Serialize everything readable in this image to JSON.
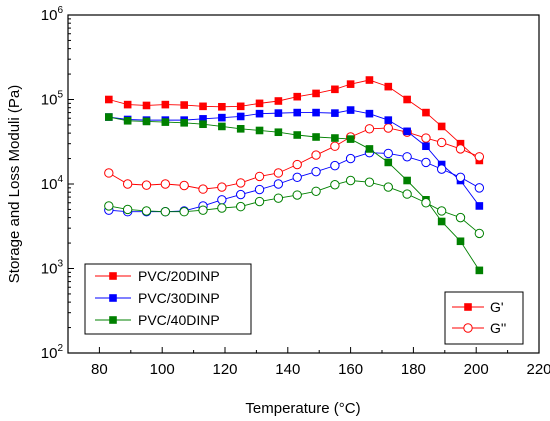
{
  "chart_data": {
    "type": "line",
    "xlabel": "Temperature (°C)",
    "ylabel": "Storage and Loss Moduli (Pa)",
    "xlim": [
      70,
      220
    ],
    "ylim": [
      100,
      1000000
    ],
    "yscale": "log",
    "x_ticks": [
      "80",
      "100",
      "120",
      "140",
      "160",
      "180",
      "200",
      "220"
    ],
    "x_tick_values": [
      80,
      100,
      120,
      140,
      160,
      180,
      200,
      220
    ],
    "y_ticks": [
      {
        "value": 100,
        "base": "10",
        "exp": "2"
      },
      {
        "value": 1000,
        "base": "10",
        "exp": "3"
      },
      {
        "value": 10000,
        "base": "10",
        "exp": "4"
      },
      {
        "value": 100000,
        "base": "10",
        "exp": "5"
      },
      {
        "value": 1000000,
        "base": "10",
        "exp": "6"
      }
    ],
    "grid": false,
    "legend_materials": {
      "placement": "bottom-left",
      "entries": [
        {
          "label": "PVC/20DINP",
          "color": "#ff0000"
        },
        {
          "label": "PVC/30DINP",
          "color": "#0000ff"
        },
        {
          "label": "PVC/40DINP",
          "color": "#008000"
        }
      ]
    },
    "legend_moduli": {
      "placement": "bottom-right",
      "entries": [
        {
          "label": "G'",
          "marker": "filled-square"
        },
        {
          "label": "G''",
          "marker": "open-circle"
        }
      ]
    },
    "x": [
      83,
      89,
      95,
      101,
      107,
      113,
      119,
      125,
      131,
      137,
      143,
      149,
      155,
      160,
      166,
      172,
      178,
      184,
      189,
      195,
      201
    ],
    "series": [
      {
        "material": "PVC/20DINP",
        "modulus": "G'",
        "color": "#ff0000",
        "marker": "filled-square",
        "values": [
          100000,
          87000,
          85000,
          87000,
          86000,
          83000,
          82000,
          83000,
          90000,
          96000,
          108000,
          118000,
          132000,
          152000,
          170000,
          142000,
          100000,
          70000,
          48000,
          30000,
          19000
        ]
      },
      {
        "material": "PVC/20DINP",
        "modulus": "G''",
        "color": "#ff0000",
        "marker": "open-circle",
        "values": [
          13500,
          10000,
          9700,
          10000,
          9600,
          8700,
          9200,
          10300,
          12300,
          13500,
          17000,
          22000,
          28000,
          36000,
          45000,
          46000,
          41000,
          35000,
          31000,
          26000,
          21000
        ]
      },
      {
        "material": "PVC/30DINP",
        "modulus": "G'",
        "color": "#0000ff",
        "marker": "filled-square",
        "values": [
          62000,
          58000,
          57000,
          57000,
          57000,
          59000,
          61000,
          63000,
          68000,
          69000,
          70000,
          70000,
          69000,
          75000,
          68000,
          57000,
          42000,
          28000,
          17000,
          11000,
          5500
        ]
      },
      {
        "material": "PVC/30DINP",
        "modulus": "G''",
        "color": "#0000ff",
        "marker": "open-circle",
        "values": [
          4900,
          4700,
          4700,
          4700,
          4800,
          5500,
          6500,
          7500,
          8600,
          10000,
          12000,
          14000,
          16500,
          20000,
          23500,
          23000,
          21000,
          18000,
          15000,
          12000,
          9000
        ]
      },
      {
        "material": "PVC/40DINP",
        "modulus": "G'",
        "color": "#008000",
        "marker": "filled-square",
        "values": [
          62000,
          56000,
          55000,
          54000,
          53000,
          51000,
          48000,
          45000,
          43000,
          41000,
          38000,
          36000,
          35000,
          34000,
          26000,
          18000,
          11000,
          6500,
          3600,
          2100,
          950
        ]
      },
      {
        "material": "PVC/40DINP",
        "modulus": "G''",
        "color": "#008000",
        "marker": "open-circle",
        "values": [
          5500,
          5000,
          4800,
          4700,
          4700,
          4900,
          5200,
          5400,
          6200,
          6800,
          7400,
          8200,
          9800,
          11000,
          10500,
          9200,
          7600,
          6000,
          4800,
          4000,
          2600
        ]
      }
    ]
  }
}
